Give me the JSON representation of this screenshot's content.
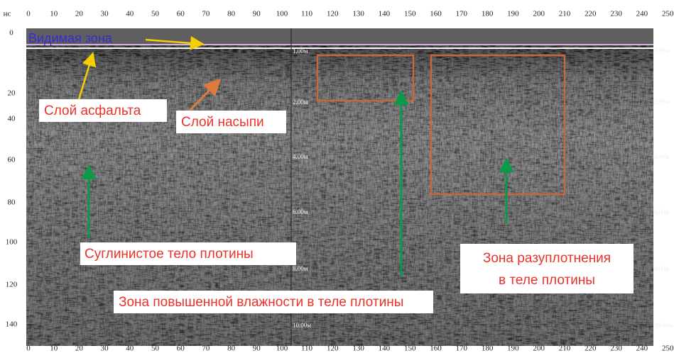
{
  "axis_unit": "нс",
  "top_ticks": [
    "0",
    "10",
    "20",
    "30",
    "40",
    "50",
    "60",
    "70",
    "80",
    "90",
    "100",
    "110",
    "120",
    "130",
    "140",
    "150",
    "160",
    "170",
    "180",
    "190",
    "200",
    "210",
    "220",
    "230",
    "240",
    "250"
  ],
  "bottom_ticks": [
    "0",
    "10",
    "20",
    "30",
    "40",
    "50",
    "60",
    "70",
    "80",
    "90",
    "100",
    "110",
    "120",
    "130",
    "140",
    "150",
    "160",
    "170",
    "180",
    "190",
    "200",
    "210",
    "220",
    "230",
    "240",
    "250"
  ],
  "left_ticks": [
    "0",
    "20",
    "40",
    "60",
    "80",
    "100",
    "120",
    "140"
  ],
  "depth_marks_left": [
    "1.00м",
    "2.00м",
    "4.00м",
    "6.00м",
    "8.00м",
    "10.00м"
  ],
  "depth_marks_right": [
    "0.00м",
    "2.00м",
    "4.00м",
    "6.00м",
    "8.00м",
    "10.00м"
  ],
  "annotations": {
    "visible_zone": "Видимая зона",
    "asphalt": "Слой асфальта",
    "fill": "Слой насыпи",
    "loam": "Суглинистое тело плотины",
    "moisture": "Зона повышенной влажности в теле плотины",
    "decompaction": [
      "Зона разуплотнения",
      "в теле плотины"
    ]
  }
}
